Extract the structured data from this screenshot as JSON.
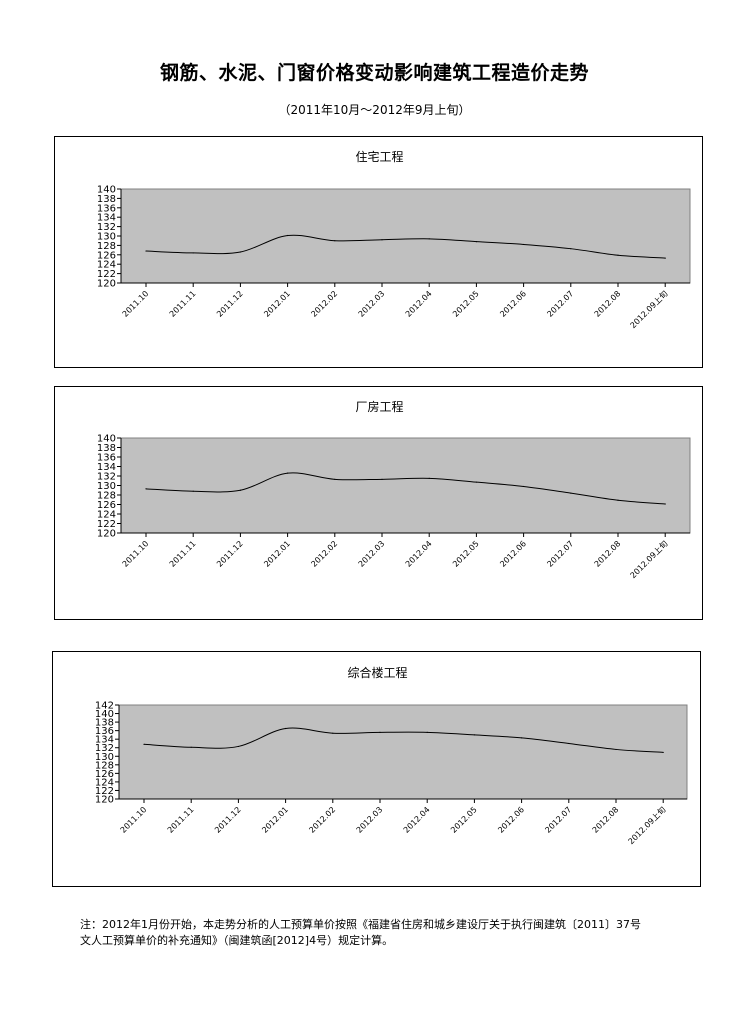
{
  "title": "钢筋、水泥、门窗价格变动影响建筑工程造价走势",
  "subtitle": "（2011年10月～2012年9月上旬）",
  "note": {
    "line1": "注：2012年1月份开始，本走势分析的人工预算单价按照《福建省住房和城乡建设厅关于执行闽建筑〔2011〕37号",
    "line2": "文人工预算单价的补充通知》（闽建筑函[2012]4号）规定计算。"
  },
  "colors": {
    "plot_bg": "#c0c0c0",
    "line": "#000000",
    "border": "#000000"
  },
  "chart_data": [
    {
      "type": "line",
      "title": "住宅工程",
      "categories": [
        "2011.10",
        "2011.11",
        "2011.12",
        "2012.01",
        "2012.02",
        "2012.03",
        "2012.04",
        "2012.05",
        "2012.06",
        "2012.07",
        "2012.08",
        "2012.09上旬"
      ],
      "values": [
        126.8,
        126.4,
        126.6,
        130.1,
        129.0,
        129.2,
        129.4,
        128.8,
        128.2,
        127.3,
        125.9,
        125.3
      ],
      "ylim": [
        120,
        140
      ],
      "yticks": [
        "120",
        "122",
        "124",
        "126",
        "128",
        "130",
        "132",
        "134",
        "136",
        "138",
        "140"
      ],
      "grid": false
    },
    {
      "type": "line",
      "title": "厂房工程",
      "categories": [
        "2011.10",
        "2011.11",
        "2011.12",
        "2012.01",
        "2012.02",
        "2012.03",
        "2012.04",
        "2012.05",
        "2012.06",
        "2012.07",
        "2012.08",
        "2012.09上旬"
      ],
      "values": [
        129.3,
        128.8,
        129.0,
        132.6,
        131.3,
        131.3,
        131.5,
        130.7,
        129.8,
        128.4,
        126.9,
        126.1
      ],
      "ylim": [
        120,
        140
      ],
      "yticks": [
        "120",
        "122",
        "124",
        "126",
        "128",
        "130",
        "132",
        "134",
        "136",
        "138",
        "140"
      ],
      "grid": false
    },
    {
      "type": "line",
      "title": "综合楼工程",
      "categories": [
        "2011.10",
        "2011.11",
        "2011.12",
        "2012.01",
        "2012.02",
        "2012.03",
        "2012.04",
        "2012.05",
        "2012.06",
        "2012.07",
        "2012.08",
        "2012.09上旬"
      ],
      "values": [
        132.8,
        132.1,
        132.3,
        136.5,
        135.4,
        135.6,
        135.6,
        135.0,
        134.3,
        133.0,
        131.6,
        130.9
      ],
      "ylim": [
        120,
        142
      ],
      "yticks": [
        "120",
        "122",
        "124",
        "126",
        "128",
        "130",
        "132",
        "134",
        "136",
        "138",
        "140",
        "142"
      ],
      "grid": false
    }
  ]
}
